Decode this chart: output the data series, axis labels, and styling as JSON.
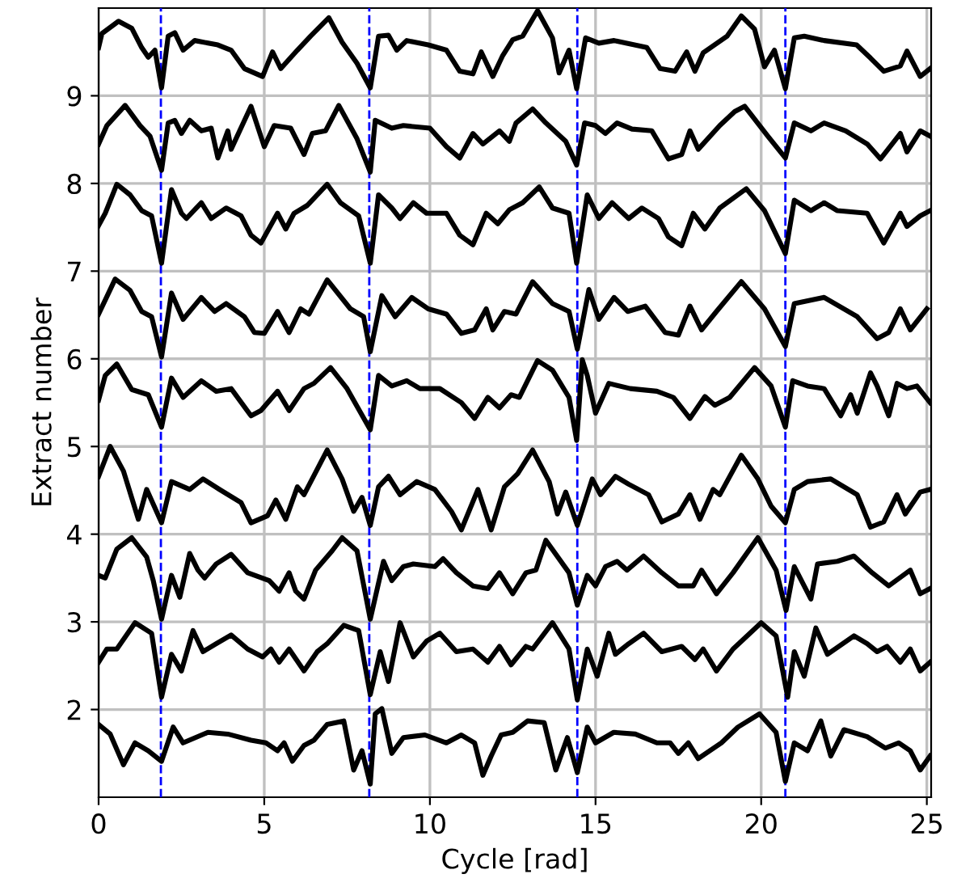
{
  "chart_data": {
    "type": "line",
    "xlabel": "Cycle [rad]",
    "ylabel": "Extract number",
    "xlim": [
      0,
      25.13
    ],
    "ylim": [
      1,
      10
    ],
    "xticks": [
      0,
      5,
      10,
      15,
      20,
      25
    ],
    "yticks": [
      2,
      3,
      4,
      5,
      6,
      7,
      8,
      9
    ],
    "grid": true,
    "line_style": "solid",
    "marker": "none",
    "ref_lines": [
      {
        "axis": "x",
        "value": 1.88,
        "color": "#0000ff",
        "line_style": "dashed"
      },
      {
        "axis": "x",
        "value": 8.17,
        "color": "#0000ff",
        "line_style": "dashed"
      },
      {
        "axis": "x",
        "value": 14.45,
        "color": "#0000ff",
        "line_style": "dashed"
      },
      {
        "axis": "x",
        "value": 20.73,
        "color": "#0000ff",
        "line_style": "dashed"
      }
    ],
    "series": [
      {
        "color": "#000000",
        "x": [
          0,
          0.1,
          0.6,
          1.0,
          1.3,
          1.5,
          1.7,
          1.9,
          2.1,
          2.3,
          2.55,
          2.9,
          3.6,
          4.0,
          4.4,
          4.95,
          5.25,
          5.5,
          6.0,
          6.4,
          6.95,
          7.35,
          7.8,
          8.2,
          8.45,
          8.75,
          9.0,
          9.3,
          9.95,
          10.5,
          10.9,
          11.3,
          11.55,
          11.9,
          12.2,
          12.5,
          12.8,
          13.25,
          13.7,
          13.9,
          14.2,
          14.43,
          14.7,
          15.1,
          15.56,
          16.55,
          16.95,
          17.4,
          17.75,
          18.0,
          18.25,
          18.97,
          19.4,
          19.8,
          20.1,
          20.4,
          20.73,
          21.0,
          21.3,
          21.9,
          22.88,
          23.3,
          23.7,
          24.2,
          24.4,
          24.8,
          25.1
        ],
        "values": [
          9.55,
          9.71,
          9.85,
          9.77,
          9.55,
          9.44,
          9.52,
          9.09,
          9.68,
          9.72,
          9.52,
          9.63,
          9.58,
          9.52,
          9.31,
          9.22,
          9.5,
          9.31,
          9.52,
          9.68,
          9.89,
          9.61,
          9.37,
          9.09,
          9.68,
          9.69,
          9.52,
          9.63,
          9.58,
          9.52,
          9.28,
          9.25,
          9.5,
          9.22,
          9.46,
          9.64,
          9.68,
          9.97,
          9.66,
          9.26,
          9.52,
          9.08,
          9.66,
          9.6,
          9.63,
          9.55,
          9.31,
          9.28,
          9.5,
          9.28,
          9.49,
          9.68,
          9.91,
          9.76,
          9.33,
          9.52,
          9.08,
          9.66,
          9.68,
          9.63,
          9.58,
          9.43,
          9.28,
          9.34,
          9.51,
          9.22,
          9.31
        ]
      },
      {
        "color": "#000000",
        "x": [
          0,
          0.25,
          0.8,
          1.25,
          1.55,
          1.9,
          2.1,
          2.3,
          2.5,
          2.75,
          3.1,
          3.4,
          3.6,
          3.9,
          4.0,
          4.6,
          5.0,
          5.3,
          5.8,
          6.2,
          6.45,
          6.85,
          7.25,
          7.8,
          8.2,
          8.35,
          8.85,
          9.2,
          10.0,
          10.5,
          10.9,
          11.3,
          11.6,
          12.1,
          12.4,
          12.6,
          13.1,
          13.5,
          14.1,
          14.43,
          14.67,
          15.0,
          15.3,
          15.65,
          16.1,
          16.7,
          17.2,
          17.6,
          17.85,
          18.1,
          18.75,
          19.2,
          19.5,
          20.2,
          20.73,
          21.0,
          21.5,
          21.9,
          22.55,
          23.2,
          23.6,
          24.2,
          24.4,
          24.8,
          25.1
        ],
        "values": [
          8.45,
          8.66,
          8.89,
          8.66,
          8.54,
          8.15,
          8.69,
          8.72,
          8.57,
          8.72,
          8.6,
          8.63,
          8.29,
          8.6,
          8.39,
          8.88,
          8.42,
          8.66,
          8.63,
          8.33,
          8.57,
          8.6,
          8.89,
          8.51,
          8.13,
          8.72,
          8.63,
          8.66,
          8.63,
          8.42,
          8.29,
          8.57,
          8.45,
          8.6,
          8.48,
          8.69,
          8.85,
          8.69,
          8.48,
          8.21,
          8.69,
          8.66,
          8.57,
          8.69,
          8.62,
          8.6,
          8.28,
          8.33,
          8.6,
          8.39,
          8.66,
          8.82,
          8.88,
          8.54,
          8.29,
          8.69,
          8.6,
          8.69,
          8.6,
          8.45,
          8.28,
          8.57,
          8.36,
          8.6,
          8.54
        ]
      },
      {
        "color": "#000000",
        "x": [
          0,
          0.2,
          0.55,
          0.95,
          1.3,
          1.6,
          1.9,
          2.2,
          2.5,
          2.65,
          3.1,
          3.4,
          3.85,
          4.3,
          4.6,
          4.9,
          5.4,
          5.65,
          5.9,
          6.3,
          6.9,
          7.3,
          7.85,
          8.2,
          8.45,
          8.85,
          9.1,
          9.5,
          9.9,
          10.5,
          10.9,
          11.3,
          11.7,
          12.05,
          12.4,
          12.8,
          13.3,
          13.7,
          14.2,
          14.43,
          14.75,
          15.1,
          15.5,
          16.0,
          16.4,
          16.9,
          17.2,
          17.6,
          17.95,
          18.3,
          18.75,
          19.55,
          20.1,
          20.73,
          21.0,
          21.5,
          21.9,
          22.3,
          23.2,
          23.7,
          24.2,
          24.4,
          24.8,
          25.1
        ],
        "values": [
          7.52,
          7.66,
          7.99,
          7.87,
          7.69,
          7.63,
          7.09,
          7.93,
          7.66,
          7.6,
          7.78,
          7.6,
          7.72,
          7.63,
          7.41,
          7.32,
          7.66,
          7.48,
          7.66,
          7.75,
          7.99,
          7.78,
          7.63,
          7.09,
          7.87,
          7.72,
          7.6,
          7.78,
          7.66,
          7.66,
          7.41,
          7.3,
          7.66,
          7.54,
          7.7,
          7.78,
          7.96,
          7.72,
          7.66,
          7.09,
          7.87,
          7.6,
          7.78,
          7.6,
          7.72,
          7.6,
          7.39,
          7.29,
          7.66,
          7.48,
          7.72,
          7.94,
          7.69,
          7.2,
          7.81,
          7.69,
          7.78,
          7.69,
          7.66,
          7.32,
          7.66,
          7.51,
          7.63,
          7.69
        ]
      },
      {
        "color": "#000000",
        "x": [
          0,
          0.5,
          0.95,
          1.3,
          1.6,
          1.9,
          2.2,
          2.55,
          3.1,
          3.5,
          3.85,
          4.4,
          4.7,
          5.0,
          5.4,
          5.75,
          6.1,
          6.35,
          6.9,
          7.6,
          8.0,
          8.2,
          8.55,
          8.95,
          9.45,
          9.95,
          10.5,
          10.95,
          11.35,
          11.7,
          11.9,
          12.25,
          12.6,
          13.1,
          13.7,
          14.2,
          14.45,
          14.8,
          15.1,
          15.56,
          15.97,
          16.5,
          17.1,
          17.5,
          17.85,
          18.2,
          18.65,
          19.4,
          20.1,
          20.73,
          21.0,
          21.9,
          22.9,
          23.5,
          23.85,
          24.2,
          24.5,
          25.0
        ],
        "values": [
          6.51,
          6.91,
          6.78,
          6.54,
          6.48,
          6.02,
          6.75,
          6.45,
          6.7,
          6.54,
          6.63,
          6.48,
          6.3,
          6.29,
          6.54,
          6.3,
          6.57,
          6.51,
          6.9,
          6.57,
          6.48,
          6.08,
          6.72,
          6.48,
          6.7,
          6.57,
          6.51,
          6.29,
          6.33,
          6.57,
          6.33,
          6.54,
          6.51,
          6.88,
          6.63,
          6.54,
          6.11,
          6.79,
          6.45,
          6.7,
          6.54,
          6.6,
          6.3,
          6.27,
          6.6,
          6.33,
          6.54,
          6.88,
          6.57,
          6.14,
          6.63,
          6.7,
          6.48,
          6.23,
          6.3,
          6.57,
          6.33,
          6.57
        ]
      },
      {
        "color": "#000000",
        "x": [
          0,
          0.2,
          0.55,
          1.0,
          1.5,
          1.9,
          2.2,
          2.55,
          3.1,
          3.55,
          4.0,
          4.6,
          4.9,
          5.4,
          5.75,
          6.2,
          6.5,
          7.0,
          7.5,
          8.2,
          8.45,
          8.85,
          9.3,
          9.7,
          10.3,
          10.95,
          11.35,
          11.75,
          12.1,
          12.45,
          12.7,
          13.25,
          13.7,
          14.2,
          14.43,
          14.6,
          14.75,
          15.0,
          15.4,
          16.05,
          16.85,
          17.35,
          17.85,
          18.3,
          18.6,
          19.05,
          19.8,
          20.3,
          20.73,
          20.95,
          21.4,
          21.9,
          22.4,
          22.7,
          22.9,
          23.3,
          23.5,
          23.85,
          24.1,
          24.4,
          24.7,
          25.1
        ],
        "values": [
          5.53,
          5.81,
          5.94,
          5.65,
          5.59,
          5.22,
          5.78,
          5.56,
          5.75,
          5.63,
          5.66,
          5.35,
          5.41,
          5.63,
          5.41,
          5.66,
          5.72,
          5.9,
          5.66,
          5.19,
          5.81,
          5.69,
          5.75,
          5.66,
          5.66,
          5.5,
          5.32,
          5.56,
          5.44,
          5.59,
          5.56,
          5.98,
          5.87,
          5.56,
          5.07,
          5.99,
          5.81,
          5.38,
          5.72,
          5.66,
          5.63,
          5.56,
          5.32,
          5.57,
          5.47,
          5.56,
          5.9,
          5.69,
          5.22,
          5.75,
          5.69,
          5.66,
          5.35,
          5.59,
          5.38,
          5.84,
          5.69,
          5.35,
          5.72,
          5.66,
          5.69,
          5.5
        ]
      },
      {
        "color": "#000000",
        "x": [
          0,
          0.35,
          0.75,
          1.2,
          1.45,
          1.9,
          2.2,
          2.75,
          3.15,
          3.65,
          4.3,
          4.6,
          5.1,
          5.35,
          5.65,
          6.0,
          6.2,
          6.9,
          7.35,
          7.7,
          7.95,
          8.2,
          8.45,
          8.75,
          9.1,
          9.6,
          10.15,
          10.65,
          10.95,
          11.45,
          11.85,
          12.25,
          12.65,
          13.1,
          13.6,
          13.85,
          14.1,
          14.45,
          14.9,
          15.15,
          15.6,
          16.0,
          16.6,
          17.0,
          17.5,
          17.85,
          18.15,
          18.55,
          18.75,
          19.4,
          19.9,
          20.3,
          20.73,
          21.0,
          21.4,
          22.1,
          22.9,
          23.3,
          23.7,
          24.1,
          24.35,
          24.8,
          25.1
        ],
        "values": [
          4.66,
          5.0,
          4.72,
          4.17,
          4.51,
          4.13,
          4.6,
          4.51,
          4.63,
          4.51,
          4.36,
          4.13,
          4.21,
          4.39,
          4.17,
          4.54,
          4.45,
          4.96,
          4.63,
          4.26,
          4.42,
          4.1,
          4.54,
          4.66,
          4.45,
          4.6,
          4.51,
          4.26,
          4.05,
          4.51,
          4.05,
          4.54,
          4.69,
          4.96,
          4.6,
          4.23,
          4.48,
          4.1,
          4.63,
          4.45,
          4.66,
          4.57,
          4.45,
          4.14,
          4.23,
          4.45,
          4.17,
          4.51,
          4.45,
          4.9,
          4.63,
          4.32,
          4.13,
          4.51,
          4.6,
          4.63,
          4.45,
          4.08,
          4.14,
          4.45,
          4.23,
          4.48,
          4.51
        ]
      },
      {
        "color": "#000000",
        "x": [
          0,
          0.2,
          0.55,
          1.0,
          1.45,
          1.65,
          1.9,
          2.2,
          2.45,
          2.75,
          3.0,
          3.2,
          3.55,
          4.0,
          4.5,
          5.15,
          5.45,
          5.75,
          5.95,
          6.2,
          6.55,
          7.05,
          7.35,
          7.8,
          8.2,
          8.6,
          8.85,
          9.2,
          9.5,
          10.15,
          10.4,
          10.8,
          11.3,
          11.75,
          12.1,
          12.5,
          12.9,
          13.2,
          13.5,
          14.2,
          14.45,
          14.75,
          15.0,
          15.3,
          15.65,
          15.95,
          16.45,
          17.0,
          17.5,
          17.95,
          18.2,
          18.65,
          19.15,
          19.9,
          20.45,
          20.75,
          21.0,
          21.5,
          21.7,
          22.3,
          22.8,
          23.35,
          23.85,
          24.5,
          24.8,
          25.1
        ],
        "values": [
          3.53,
          3.5,
          3.83,
          3.96,
          3.74,
          3.47,
          3.03,
          3.53,
          3.28,
          3.78,
          3.59,
          3.5,
          3.66,
          3.77,
          3.56,
          3.47,
          3.35,
          3.56,
          3.35,
          3.26,
          3.59,
          3.81,
          3.96,
          3.81,
          3.03,
          3.69,
          3.47,
          3.63,
          3.66,
          3.63,
          3.72,
          3.56,
          3.41,
          3.38,
          3.56,
          3.32,
          3.56,
          3.59,
          3.93,
          3.56,
          3.19,
          3.53,
          3.41,
          3.63,
          3.69,
          3.59,
          3.75,
          3.56,
          3.41,
          3.41,
          3.59,
          3.32,
          3.56,
          3.96,
          3.59,
          3.13,
          3.63,
          3.26,
          3.66,
          3.69,
          3.75,
          3.56,
          3.41,
          3.59,
          3.32,
          3.38
        ]
      },
      {
        "color": "#000000",
        "x": [
          0,
          0.25,
          0.55,
          1.1,
          1.6,
          1.9,
          2.2,
          2.5,
          2.85,
          3.15,
          3.55,
          4.0,
          4.5,
          4.95,
          5.2,
          5.45,
          5.75,
          6.2,
          6.6,
          6.9,
          7.4,
          7.85,
          8.2,
          8.5,
          8.75,
          9.1,
          9.5,
          9.9,
          10.3,
          10.8,
          11.3,
          11.75,
          12.1,
          12.45,
          12.9,
          13.1,
          13.7,
          14.2,
          14.45,
          14.75,
          15.05,
          15.4,
          15.6,
          16.0,
          16.45,
          17.0,
          17.6,
          18.0,
          18.25,
          18.65,
          19.15,
          20.0,
          20.45,
          20.8,
          21.0,
          21.3,
          21.65,
          22.0,
          22.8,
          23.2,
          23.5,
          23.8,
          24.2,
          24.5,
          24.8,
          25.1
        ],
        "values": [
          2.54,
          2.69,
          2.69,
          2.99,
          2.87,
          2.14,
          2.63,
          2.44,
          2.9,
          2.66,
          2.75,
          2.85,
          2.69,
          2.6,
          2.69,
          2.54,
          2.69,
          2.44,
          2.66,
          2.75,
          2.96,
          2.9,
          2.17,
          2.66,
          2.32,
          2.99,
          2.6,
          2.78,
          2.87,
          2.66,
          2.69,
          2.54,
          2.72,
          2.51,
          2.72,
          2.69,
          2.99,
          2.69,
          2.11,
          2.69,
          2.38,
          2.87,
          2.63,
          2.75,
          2.87,
          2.66,
          2.72,
          2.57,
          2.69,
          2.44,
          2.69,
          2.99,
          2.84,
          2.14,
          2.66,
          2.38,
          2.93,
          2.63,
          2.84,
          2.75,
          2.66,
          2.72,
          2.54,
          2.69,
          2.44,
          2.54
        ]
      },
      {
        "color": "#000000",
        "x": [
          0,
          0.35,
          0.75,
          1.1,
          1.5,
          1.9,
          2.25,
          2.55,
          3.3,
          3.9,
          4.6,
          5.05,
          5.4,
          5.6,
          5.85,
          6.2,
          6.5,
          6.9,
          7.4,
          7.7,
          7.95,
          8.2,
          8.35,
          8.55,
          8.85,
          9.2,
          9.85,
          10.5,
          10.95,
          11.35,
          11.6,
          11.85,
          12.15,
          12.5,
          12.95,
          13.45,
          13.8,
          14.15,
          14.45,
          14.75,
          15.0,
          15.55,
          16.2,
          16.85,
          17.25,
          17.5,
          17.8,
          18.1,
          18.8,
          19.3,
          19.95,
          20.45,
          20.73,
          21.0,
          21.4,
          21.8,
          22.1,
          22.5,
          23.2,
          23.75,
          24.15,
          24.5,
          24.8,
          25.1
        ],
        "values": [
          1.83,
          1.72,
          1.37,
          1.62,
          1.53,
          1.41,
          1.8,
          1.62,
          1.74,
          1.72,
          1.65,
          1.62,
          1.53,
          1.62,
          1.41,
          1.59,
          1.65,
          1.83,
          1.87,
          1.31,
          1.53,
          1.15,
          1.95,
          2.01,
          1.5,
          1.68,
          1.71,
          1.62,
          1.71,
          1.62,
          1.25,
          1.47,
          1.71,
          1.74,
          1.87,
          1.85,
          1.31,
          1.68,
          1.28,
          1.8,
          1.62,
          1.74,
          1.72,
          1.62,
          1.62,
          1.5,
          1.62,
          1.44,
          1.62,
          1.8,
          1.95,
          1.74,
          1.18,
          1.62,
          1.53,
          1.87,
          1.47,
          1.77,
          1.69,
          1.56,
          1.62,
          1.53,
          1.31,
          1.47
        ]
      }
    ]
  }
}
